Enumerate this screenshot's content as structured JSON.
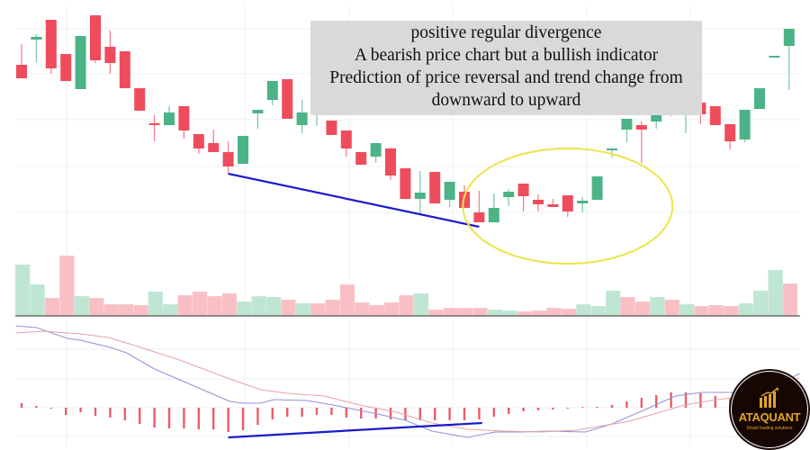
{
  "annotation": {
    "lines": [
      "positive regular divergence",
      "A bearish price chart but a bullish indicator",
      "Prediction of price reversal and trend change from",
      "downward to upward"
    ]
  },
  "logo": {
    "brand": "ATAQUANT",
    "tagline": "Smart trading solutions"
  },
  "colors": {
    "up": "#4cb386",
    "down": "#ee4c5c",
    "volume_up": "#bfe5d3",
    "volume_down": "#f8c0c5",
    "macd_line": "#9195d8",
    "signal_line": "#e6a3a7",
    "histogram": "#ea5d69",
    "divergence_line": "#1a1acc",
    "highlight_ellipse": "#ece44a",
    "annotation_bg": "#d9d9d9"
  },
  "chart_data": [
    {
      "type": "candlestick",
      "title": "",
      "grid": true,
      "candles": [
        [
          228,
          251,
          213,
          213
        ],
        [
          256,
          262,
          231,
          259
        ],
        [
          278,
          278,
          218,
          224
        ],
        [
          240,
          240,
          210,
          210
        ],
        [
          201,
          260,
          201,
          260
        ],
        [
          283,
          283,
          230,
          233
        ],
        [
          248,
          266,
          218,
          230
        ],
        [
          243,
          243,
          202,
          202
        ],
        [
          202,
          202,
          177,
          177
        ],
        [
          163,
          172,
          143,
          161
        ],
        [
          161,
          182,
          161,
          175
        ],
        [
          182,
          182,
          146,
          155
        ],
        [
          151,
          151,
          129,
          135
        ],
        [
          141,
          156,
          131,
          131
        ],
        [
          131,
          143,
          107,
          115
        ],
        [
          118,
          149,
          118,
          149
        ],
        [
          174,
          178,
          157,
          178
        ],
        [
          189,
          210,
          183,
          210
        ],
        [
          212,
          212,
          168,
          168
        ],
        [
          161,
          189,
          152,
          175
        ],
        [
          182,
          188,
          160,
          188
        ],
        [
          166,
          166,
          150,
          150
        ],
        [
          155,
          155,
          126,
          135
        ],
        [
          131,
          131,
          117,
          117
        ],
        [
          126,
          141,
          119,
          141
        ],
        [
          135,
          136,
          100,
          105
        ],
        [
          113,
          113,
          79,
          79
        ],
        [
          79,
          110,
          62,
          86
        ],
        [
          109,
          109,
          74,
          74
        ],
        [
          78,
          98,
          70,
          98
        ],
        [
          87,
          94,
          69,
          69
        ],
        [
          64,
          88,
          53,
          53
        ],
        [
          53,
          85,
          53,
          69
        ],
        [
          81,
          90,
          71,
          87
        ],
        [
          96,
          96,
          65,
          82
        ],
        [
          78,
          84,
          65,
          73
        ],
        [
          73,
          79,
          70,
          70
        ],
        [
          83,
          83,
          59,
          65
        ],
        [
          74,
          81,
          64,
          77
        ],
        [
          78,
          104,
          78,
          104
        ],
        [
          134,
          135,
          125,
          135
        ],
        [
          156,
          168,
          142,
          168
        ],
        [
          161,
          165,
          119,
          156
        ],
        [
          165,
          182,
          157,
          182
        ],
        [
          197,
          204,
          171,
          177
        ],
        [
          176,
          179,
          152,
          179
        ],
        [
          186,
          186,
          162,
          173
        ],
        [
          182,
          182,
          161,
          161
        ],
        [
          162,
          162,
          134,
          143
        ],
        [
          145,
          178,
          142,
          178
        ],
        [
          179,
          202,
          179,
          202
        ],
        [
          238,
          238,
          238,
          238
        ],
        [
          249,
          268,
          200,
          268
        ]
      ],
      "candle_fields": [
        "open",
        "high",
        "low",
        "close"
      ],
      "divergence_line": {
        "from": [
          14,
          107
        ],
        "to": [
          31,
          48
        ]
      },
      "highlight_ellipse": {
        "center": [
          37,
          71
        ],
        "radius": [
          7.1,
          64
        ]
      }
    },
    {
      "type": "bar",
      "title": "",
      "volumes": [
        57,
        35,
        20,
        67,
        22,
        20,
        13,
        13,
        12,
        27,
        13,
        23,
        27,
        22,
        25,
        16,
        22,
        21,
        18,
        14,
        14,
        18,
        35,
        15,
        12,
        15,
        23,
        25,
        7,
        9,
        9,
        9,
        7,
        6,
        5,
        6,
        9,
        8,
        13,
        11,
        28,
        21,
        16,
        21,
        18,
        13,
        11,
        12,
        11,
        14,
        28,
        51,
        36
      ],
      "direction": [
        "up",
        "up",
        "down",
        "down",
        "up",
        "down",
        "down",
        "down",
        "down",
        "up",
        "up",
        "down",
        "down",
        "down",
        "down",
        "up",
        "up",
        "up",
        "down",
        "up",
        "down",
        "down",
        "down",
        "down",
        "down",
        "down",
        "down",
        "up",
        "down",
        "down",
        "down",
        "down",
        "up",
        "up",
        "down",
        "down",
        "down",
        "down",
        "up",
        "up",
        "up",
        "down",
        "down",
        "up",
        "down",
        "up",
        "down",
        "down",
        "down",
        "up",
        "up",
        "up",
        "down"
      ]
    },
    {
      "type": "line",
      "title": "",
      "grid": true,
      "series": [
        {
          "values": [
            [
              -0.4,
              91
            ],
            [
              1,
              89
            ],
            [
              3.1,
              77
            ],
            [
              4,
              75
            ],
            [
              6,
              67
            ],
            [
              7.1,
              61
            ],
            [
              9,
              43
            ],
            [
              11,
              29
            ],
            [
              14.1,
              7
            ],
            [
              15,
              5
            ],
            [
              16.2,
              5
            ],
            [
              17.1,
              9
            ],
            [
              19.3,
              8
            ],
            [
              21.1,
              3
            ],
            [
              22.3,
              -1
            ],
            [
              24.1,
              -7
            ],
            [
              26,
              -14
            ],
            [
              27.8,
              -26
            ],
            [
              30.2,
              -33
            ],
            [
              32.1,
              -27
            ],
            [
              33.9,
              -27
            ],
            [
              35.7,
              -26
            ],
            [
              38.2,
              -27
            ],
            [
              40,
              -18
            ],
            [
              42.4,
              -1
            ],
            [
              44.3,
              13
            ],
            [
              46.1,
              17
            ],
            [
              48.5,
              17
            ],
            [
              51,
              23
            ],
            [
              52.7,
              38
            ]
          ]
        },
        {
          "values": [
            [
              -0.4,
              83
            ],
            [
              1.6,
              85
            ],
            [
              3.1,
              83
            ],
            [
              4,
              82
            ],
            [
              5.9,
              78
            ],
            [
              7.7,
              69
            ],
            [
              10.7,
              53
            ],
            [
              14.1,
              32
            ],
            [
              16.2,
              20
            ],
            [
              18,
              16
            ],
            [
              20.5,
              13
            ],
            [
              22.9,
              3
            ],
            [
              25.4,
              -5
            ],
            [
              27.8,
              -17
            ],
            [
              30.2,
              -24
            ],
            [
              32.7,
              -26
            ],
            [
              35.1,
              -27
            ],
            [
              37.6,
              -25
            ],
            [
              41.2,
              -15
            ],
            [
              44.9,
              3
            ],
            [
              46.7,
              8
            ],
            [
              49.1,
              13
            ],
            [
              52.7,
              33
            ]
          ]
        }
      ],
      "histogram": [
        5,
        2,
        -1,
        -8,
        -5,
        -9,
        -11,
        -14,
        -18,
        -22,
        -23,
        -23,
        -24,
        -24,
        -27,
        -25,
        -19,
        -13,
        -10,
        -10,
        -8,
        -8,
        -11,
        -12,
        -12,
        -13,
        -14,
        -14,
        -14,
        -14,
        -14,
        -13,
        -10,
        -7,
        -4,
        -3,
        -2,
        -1,
        0,
        1,
        3,
        7,
        11,
        14,
        17,
        17,
        16,
        13,
        10
      ],
      "divergence_line": {
        "from": [
          14,
          -33
        ],
        "to": [
          31.2,
          -17
        ]
      }
    }
  ]
}
